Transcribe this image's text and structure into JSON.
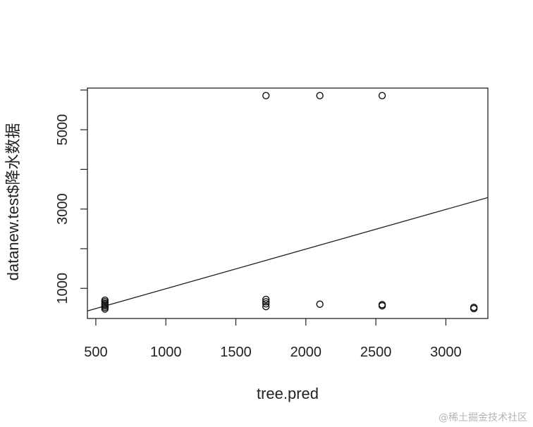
{
  "chart_data": {
    "type": "scatter",
    "title": "",
    "xlabel": "tree.pred",
    "ylabel": "datanew.test$降水数据",
    "xlim": [
      440,
      3300
    ],
    "ylim": [
      240,
      6050
    ],
    "xticks": [
      500,
      1000,
      1500,
      2000,
      2500,
      3000
    ],
    "xtick_labels": [
      "500",
      "1000",
      "1500",
      "2000",
      "2500",
      "3000"
    ],
    "yticks": [
      1000,
      2000,
      3000,
      4000,
      5000,
      6000
    ],
    "ytick_labels": [
      "1000",
      "",
      "3000",
      "",
      "5000",
      ""
    ],
    "grid": false,
    "series": [
      {
        "marker": "open-circle",
        "points": [
          [
            565,
            480
          ],
          [
            565,
            520
          ],
          [
            565,
            560
          ],
          [
            565,
            590
          ],
          [
            565,
            620
          ],
          [
            565,
            660
          ],
          [
            565,
            700
          ],
          [
            1715,
            540
          ],
          [
            1715,
            610
          ],
          [
            1715,
            660
          ],
          [
            1715,
            720
          ],
          [
            1715,
            5860
          ],
          [
            2100,
            600
          ],
          [
            2100,
            5860
          ],
          [
            2545,
            560
          ],
          [
            2545,
            590
          ],
          [
            2545,
            5860
          ],
          [
            3200,
            490
          ],
          [
            3200,
            520
          ]
        ]
      }
    ],
    "fit_line": {
      "x": [
        440,
        3300
      ],
      "y": [
        430,
        3290
      ]
    }
  },
  "watermark": "@稀土掘金技术社区"
}
